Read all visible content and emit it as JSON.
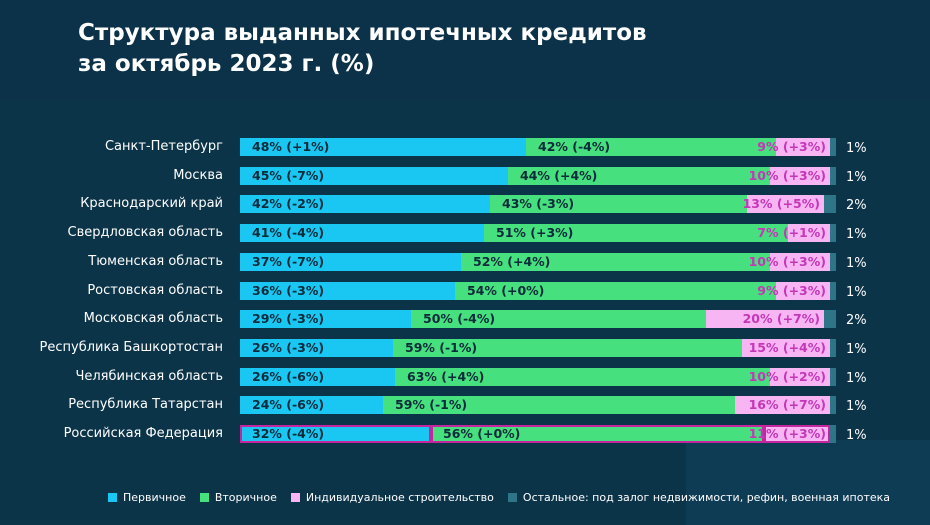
{
  "title_line1": "Структура выданных ипотечных кредитов",
  "title_line2": "за октябрь 2023 г. (%)",
  "colors": {
    "primary": "#1ac7f2",
    "secondary": "#46e07e",
    "individual": "#f7b6f3",
    "other": "#2f7588",
    "label_dark": "#0b2a3a",
    "label_pink": "#c437b7",
    "highlight_border": "#c4269f"
  },
  "chart_data": {
    "type": "bar",
    "stacked": true,
    "orientation": "horizontal",
    "title": "Структура выданных ипотечных кредитов за октябрь 2023 г. (%)",
    "categories": [
      "Санкт-Петербург",
      "Москва",
      "Краснодарский край",
      "Свердловская область",
      "Тюменская область",
      "Ростовская область",
      "Московская область",
      "Республика Башкортостан",
      "Челябинская область",
      "Республика Татарстан",
      "Российская Федерация"
    ],
    "series": [
      {
        "name": "Первичное",
        "values": [
          48,
          45,
          42,
          41,
          37,
          36,
          29,
          26,
          26,
          24,
          32
        ],
        "labels": [
          "48% (+1%)",
          "45% (-7%)",
          "42% (-2%)",
          "41% (-4%)",
          "37% (-7%)",
          "36% (-3%)",
          "29% (-3%)",
          "26% (-3%)",
          "26% (-6%)",
          "24% (-6%)",
          "32% (-4%)"
        ]
      },
      {
        "name": "Вторичное",
        "values": [
          42,
          44,
          43,
          51,
          52,
          54,
          50,
          59,
          63,
          59,
          56
        ],
        "labels": [
          "42% (-4%)",
          "44% (+4%)",
          "43% (-3%)",
          "51% (+3%)",
          "52% (+4%)",
          "54% (+0%)",
          "50% (-4%)",
          "59% (-1%)",
          "63% (+4%)",
          "59% (-1%)",
          "56% (+0%)"
        ]
      },
      {
        "name": "Индивидуальное строительство",
        "values": [
          9,
          10,
          13,
          7,
          10,
          9,
          20,
          15,
          10,
          16,
          11
        ],
        "labels": [
          "9% (+3%)",
          "10% (+3%)",
          "13% (+5%)",
          "7% (+1%)",
          "10% (+3%)",
          "9% (+3%)",
          "20% (+7%)",
          "15% (+4%)",
          "10% (+2%)",
          "16% (+7%)",
          "11% (+3%)"
        ]
      },
      {
        "name": "Остальное: под залог недвижимости, рефин, военная ипотека",
        "values": [
          1,
          1,
          2,
          1,
          1,
          1,
          2,
          1,
          1,
          1,
          1
        ],
        "labels": [
          "1%",
          "1%",
          "2%",
          "1%",
          "1%",
          "1%",
          "2%",
          "1%",
          "1%",
          "1%",
          "1%"
        ]
      }
    ],
    "xlim": [
      0,
      100
    ],
    "highlighted_category": "Российская Федерация",
    "legend_position": "bottom"
  }
}
